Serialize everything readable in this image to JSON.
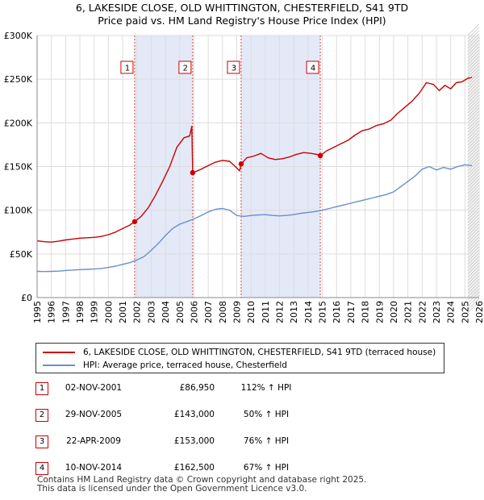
{
  "title_line1": "6, LAKESIDE CLOSE, OLD WHITTINGTON, CHESTERFIELD, S41 9TD",
  "title_line2": "Price paid vs. HM Land Registry's House Price Index (HPI)",
  "colors": {
    "property": "#cc0000",
    "hpi": "#6a8fc8",
    "shade": "#e4e9f8",
    "grid": "#dddddd"
  },
  "chart_data": {
    "type": "line",
    "xlim": [
      1995,
      2026
    ],
    "ylim": [
      0,
      300000
    ],
    "x_ticks": [
      1995,
      1996,
      1997,
      1998,
      1999,
      2000,
      2001,
      2002,
      2003,
      2004,
      2005,
      2006,
      2007,
      2008,
      2009,
      2010,
      2011,
      2012,
      2013,
      2014,
      2015,
      2016,
      2017,
      2018,
      2019,
      2020,
      2021,
      2022,
      2023,
      2024,
      2025,
      2026
    ],
    "y_ticks": [
      {
        "value": 0,
        "label": "£0"
      },
      {
        "value": 50000,
        "label": "£50K"
      },
      {
        "value": 100000,
        "label": "£100K"
      },
      {
        "value": 150000,
        "label": "£150K"
      },
      {
        "value": 200000,
        "label": "£200K"
      },
      {
        "value": 250000,
        "label": "£250K"
      },
      {
        "value": 300000,
        "label": "£300K"
      }
    ],
    "shaded_periods": [
      [
        2001.84,
        2005.91
      ],
      [
        2009.31,
        2014.86
      ]
    ],
    "forecast_start": 2025.2,
    "series": [
      {
        "name": "6, LAKESIDE CLOSE, OLD WHITTINGTON, CHESTERFIELD, S41 9TD (terraced house)",
        "x": [
          1995,
          1995.5,
          1996,
          1996.5,
          1997,
          1997.5,
          1998,
          1998.5,
          1999,
          1999.5,
          2000,
          2000.5,
          2001,
          2001.5,
          2001.84,
          2002.3,
          2002.8,
          2003.3,
          2003.8,
          2004.3,
          2004.8,
          2005.3,
          2005.7,
          2005.85,
          2005.91,
          2006.1,
          2006.5,
          2007,
          2007.5,
          2008,
          2008.5,
          2008.9,
          2009.2,
          2009.31,
          2009.7,
          2010.2,
          2010.7,
          2011.2,
          2011.7,
          2012.2,
          2012.7,
          2013.2,
          2013.7,
          2014.2,
          2014.6,
          2014.86,
          2015.3,
          2015.8,
          2016.3,
          2016.8,
          2017.3,
          2017.8,
          2018.3,
          2018.8,
          2019.3,
          2019.8,
          2020.3,
          2020.8,
          2021.3,
          2021.8,
          2022.3,
          2022.8,
          2023.2,
          2023.6,
          2024.0,
          2024.4,
          2024.8,
          2025.2,
          2025.5
        ],
        "y": [
          65000,
          64000,
          63500,
          64500,
          66000,
          67000,
          68000,
          68500,
          69000,
          70000,
          72000,
          75000,
          79000,
          83000,
          86950,
          93000,
          103000,
          117000,
          133000,
          150000,
          172000,
          183000,
          185000,
          196000,
          143000,
          144000,
          147000,
          151000,
          155000,
          157000,
          156000,
          150000,
          145000,
          153000,
          160000,
          162000,
          165000,
          160000,
          158000,
          159000,
          161000,
          164000,
          166000,
          165000,
          164000,
          162500,
          168000,
          172000,
          176000,
          180000,
          186000,
          191000,
          193000,
          197000,
          199000,
          203000,
          211000,
          218000,
          225000,
          234000,
          246000,
          244000,
          237000,
          243000,
          239000,
          246000,
          247000,
          251000,
          252000
        ]
      },
      {
        "name": "HPI: Average price, terraced house, Chesterfield",
        "x": [
          1995,
          1995.5,
          1996,
          1996.5,
          1997,
          1997.5,
          1998,
          1998.5,
          1999,
          1999.5,
          2000,
          2000.5,
          2001,
          2001.5,
          2002,
          2002.5,
          2003,
          2003.5,
          2004,
          2004.5,
          2005,
          2005.5,
          2006,
          2006.5,
          2007,
          2007.5,
          2008,
          2008.5,
          2009,
          2009.5,
          2010,
          2010.5,
          2011,
          2011.5,
          2012,
          2012.5,
          2013,
          2013.5,
          2014,
          2014.5,
          2015,
          2015.5,
          2016,
          2016.5,
          2017,
          2017.5,
          2018,
          2018.5,
          2019,
          2019.5,
          2020,
          2020.5,
          2021,
          2021.5,
          2022,
          2022.5,
          2023,
          2023.5,
          2024,
          2024.5,
          2025,
          2025.5
        ],
        "y": [
          30000,
          29800,
          30000,
          30300,
          31000,
          31500,
          32000,
          32300,
          32700,
          33300,
          34500,
          36000,
          38000,
          40000,
          43000,
          47000,
          54000,
          62000,
          71000,
          79000,
          84000,
          87000,
          90000,
          94000,
          98000,
          101000,
          102000,
          100000,
          94000,
          93000,
          94000,
          94500,
          95000,
          94000,
          93500,
          94000,
          95000,
          96500,
          97500,
          98500,
          100000,
          102000,
          104000,
          106000,
          108000,
          110000,
          112000,
          114000,
          116000,
          118000,
          121000,
          127000,
          133000,
          139000,
          147000,
          150000,
          146000,
          149000,
          147000,
          150000,
          152000,
          151000
        ]
      }
    ],
    "markers": [
      {
        "label": "1",
        "x": 2001.84,
        "y": 86950
      },
      {
        "label": "2",
        "x": 2005.91,
        "y": 143000
      },
      {
        "label": "3",
        "x": 2009.31,
        "y": 153000
      },
      {
        "label": "4",
        "x": 2014.86,
        "y": 162500
      }
    ]
  },
  "legend": {
    "property_label": "6, LAKESIDE CLOSE, OLD WHITTINGTON, CHESTERFIELD, S41 9TD (terraced house)",
    "hpi_label": "HPI: Average price, terraced house, Chesterfield"
  },
  "sales": [
    {
      "num": "1",
      "date": "02-NOV-2001",
      "price": "£86,950",
      "hpi": "112% ↑ HPI"
    },
    {
      "num": "2",
      "date": "29-NOV-2005",
      "price": "£143,000",
      "hpi": "50% ↑ HPI"
    },
    {
      "num": "3",
      "date": "22-APR-2009",
      "price": "£153,000",
      "hpi": "76% ↑ HPI"
    },
    {
      "num": "4",
      "date": "10-NOV-2014",
      "price": "£162,500",
      "hpi": "67% ↑ HPI"
    }
  ],
  "footer_line1": "Contains HM Land Registry data © Crown copyright and database right 2025.",
  "footer_line2": "This data is licensed under the Open Government Licence v3.0."
}
